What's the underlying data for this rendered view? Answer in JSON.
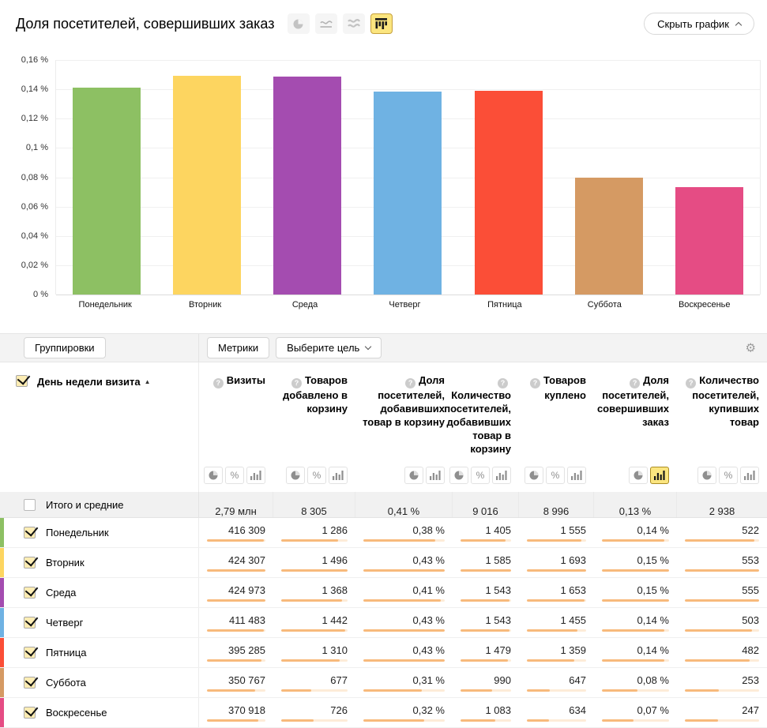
{
  "chart": {
    "title": "Доля посетителей, совершивших заказ",
    "hide_label": "Скрыть график",
    "type_buttons": [
      "pie-chart",
      "line-chart",
      "stacked-area-chart",
      "bar-chart"
    ],
    "selected_type_index": 3
  },
  "chart_data": {
    "type": "bar",
    "title": "Доля посетителей, совершивших заказ",
    "categories": [
      "Понедельник",
      "Вторник",
      "Среда",
      "Четверг",
      "Пятница",
      "Суббота",
      "Воскресенье"
    ],
    "values": [
      0.141,
      0.1495,
      0.1485,
      0.1385,
      0.139,
      0.0795,
      0.0735
    ],
    "colors": [
      "#8dc063",
      "#fdd560",
      "#a44cb0",
      "#6fb2e3",
      "#fb4e37",
      "#d59a63",
      "#e54c84"
    ],
    "xlabel": "",
    "ylabel": "",
    "ylim": [
      0,
      0.16
    ],
    "yticks": [
      "0,16 %",
      "0,14 %",
      "0,12 %",
      "0,1 %",
      "0,08 %",
      "0,06 %",
      "0,04 %",
      "0,02 %",
      "0 %"
    ],
    "grid": true,
    "legend": false
  },
  "toolbar": {
    "groupings_label": "Группировки",
    "metrics_label": "Метрики",
    "choose_goal_label": "Выберите цель",
    "gear_icon": "settings-gear"
  },
  "table": {
    "group_header": "День недели визита",
    "sort": "ascending",
    "columns": [
      {
        "label": "Визиты",
        "icons": [
          "pie",
          "percent",
          "bars"
        ]
      },
      {
        "label": "Товаров добавлено в корзину",
        "icons": [
          "pie",
          "percent",
          "bars"
        ]
      },
      {
        "label": "Доля посетителей, добавивших товар в корзину",
        "icons": [
          "pie",
          "bars"
        ]
      },
      {
        "label": "Количество посетителей, добавивших товар в корзину",
        "icons": [
          "pie",
          "percent",
          "bars"
        ]
      },
      {
        "label": "Товаров куплено",
        "icons": [
          "pie",
          "percent",
          "bars"
        ]
      },
      {
        "label": "Доля посетителей, совершивших заказ",
        "icons": [
          "pie",
          "bars"
        ]
      },
      {
        "label": "Количество посетителей, купивших товар",
        "icons": [
          "pie",
          "percent",
          "bars"
        ]
      }
    ],
    "selected_metric": {
      "column_index": 5,
      "icon": "bars"
    },
    "totals": {
      "label": "Итого и средние",
      "checked": false,
      "values": [
        "2,79 млн",
        "8 305",
        "0,41 %",
        "9 016",
        "8 996",
        "0,13 %",
        "2 938"
      ]
    },
    "rows": [
      {
        "label": "Понедельник",
        "color": "#8dc063",
        "checked": true,
        "values": [
          "416 309",
          "1 286",
          "0,38 %",
          "1 405",
          "1 555",
          "0,14 %",
          "522"
        ],
        "numeric": [
          416309,
          1286,
          0.38,
          1405,
          1555,
          0.14,
          522
        ]
      },
      {
        "label": "Вторник",
        "color": "#fdd560",
        "checked": true,
        "values": [
          "424 307",
          "1 496",
          "0,43 %",
          "1 585",
          "1 693",
          "0,15 %",
          "553"
        ],
        "numeric": [
          424307,
          1496,
          0.43,
          1585,
          1693,
          0.15,
          553
        ]
      },
      {
        "label": "Среда",
        "color": "#a44cb0",
        "checked": true,
        "values": [
          "424 973",
          "1 368",
          "0,41 %",
          "1 543",
          "1 653",
          "0,15 %",
          "555"
        ],
        "numeric": [
          424973,
          1368,
          0.41,
          1543,
          1653,
          0.15,
          555
        ]
      },
      {
        "label": "Четверг",
        "color": "#6fb2e3",
        "checked": true,
        "values": [
          "411 483",
          "1 442",
          "0,43 %",
          "1 543",
          "1 455",
          "0,14 %",
          "503"
        ],
        "numeric": [
          411483,
          1442,
          0.43,
          1543,
          1455,
          0.14,
          503
        ]
      },
      {
        "label": "Пятница",
        "color": "#fb4e37",
        "checked": true,
        "values": [
          "395 285",
          "1 310",
          "0,43 %",
          "1 479",
          "1 359",
          "0,14 %",
          "482"
        ],
        "numeric": [
          395285,
          1310,
          0.43,
          1479,
          1359,
          0.14,
          482
        ]
      },
      {
        "label": "Суббота",
        "color": "#d59a63",
        "checked": true,
        "values": [
          "350 767",
          "677",
          "0,31 %",
          "990",
          "647",
          "0,08 %",
          "253"
        ],
        "numeric": [
          350767,
          677,
          0.31,
          990,
          647,
          0.08,
          253
        ]
      },
      {
        "label": "Воскресенье",
        "color": "#e54c84",
        "checked": true,
        "values": [
          "370 918",
          "726",
          "0,32 %",
          "1 083",
          "634",
          "0,07 %",
          "247"
        ],
        "numeric": [
          370918,
          726,
          0.32,
          1083,
          634,
          0.07,
          247
        ]
      }
    ]
  }
}
